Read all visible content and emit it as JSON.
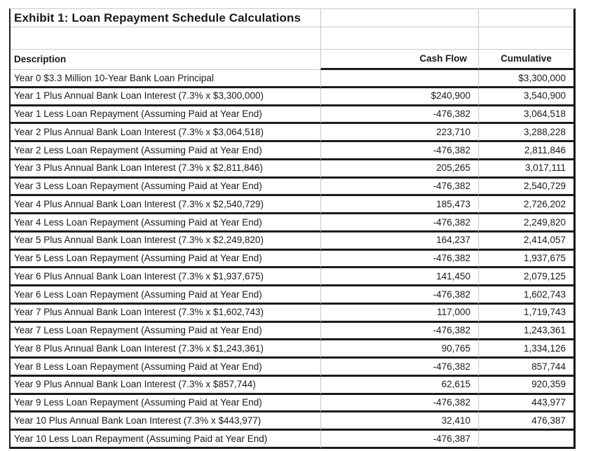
{
  "colors": {
    "background": "#ffffff",
    "text": "#1a1a1a",
    "thick_border": "#1b1b1b",
    "thin_border": "#c9c9c9"
  },
  "exhibit": {
    "title": "Exhibit 1: Loan Repayment Schedule Calculations",
    "headers": {
      "description": "Description",
      "cash_flow": "Cash Flow",
      "cumulative": "Cumulative"
    },
    "rows": [
      {
        "description": "Year 0 $3.3 Million 10-Year Bank Loan Principal",
        "cash_flow": "",
        "cumulative": "$3,300,000"
      },
      {
        "description": "Year 1 Plus Annual Bank Loan Interest (7.3% x $3,300,000)",
        "cash_flow": "$240,900",
        "cumulative": "3,540,900"
      },
      {
        "description": "Year 1 Less Loan Repayment (Assuming Paid at Year End)",
        "cash_flow": "-476,382",
        "cumulative": "3,064,518"
      },
      {
        "description": "Year 2 Plus Annual Bank Loan Interest (7.3% x $3,064,518)",
        "cash_flow": "223,710",
        "cumulative": "3,288,228"
      },
      {
        "description": "Year 2 Less Loan Repayment (Assuming Paid at Year End)",
        "cash_flow": "-476,382",
        "cumulative": "2,811,846"
      },
      {
        "description": "Year 3 Plus Annual Bank Loan Interest (7.3% x $2,811,846)",
        "cash_flow": "205,265",
        "cumulative": "3,017,111"
      },
      {
        "description": "Year 3 Less Loan Repayment (Assuming Paid at Year End)",
        "cash_flow": "-476,382",
        "cumulative": "2,540,729"
      },
      {
        "description": "Year 4 Plus Annual Bank Loan Interest (7.3% x $2,540,729)",
        "cash_flow": "185,473",
        "cumulative": "2,726,202"
      },
      {
        "description": "Year 4 Less Loan Repayment (Assuming Paid at Year End)",
        "cash_flow": "-476,382",
        "cumulative": "2,249,820"
      },
      {
        "description": "Year 5 Plus Annual Bank Loan Interest (7.3% x $2,249,820)",
        "cash_flow": "164,237",
        "cumulative": "2,414,057"
      },
      {
        "description": "Year 5 Less Loan Repayment (Assuming Paid at Year End)",
        "cash_flow": "-476,382",
        "cumulative": "1,937,675"
      },
      {
        "description": "Year 6 Plus Annual Bank Loan Interest (7.3% x $1,937,675)",
        "cash_flow": "141,450",
        "cumulative": "2,079,125"
      },
      {
        "description": "Year 6 Less Loan Repayment (Assuming Paid at Year End)",
        "cash_flow": "-476,382",
        "cumulative": "1,602,743"
      },
      {
        "description": "Year 7 Plus Annual Bank Loan Interest (7.3% x $1,602,743)",
        "cash_flow": "117,000",
        "cumulative": "1,719,743"
      },
      {
        "description": "Year 7 Less Loan Repayment (Assuming Paid at Year End)",
        "cash_flow": "-476,382",
        "cumulative": "1,243,361"
      },
      {
        "description": "Year 8 Plus Annual Bank Loan Interest (7.3% x $1,243,361)",
        "cash_flow": "90,765",
        "cumulative": "1,334,126"
      },
      {
        "description": "Year 8 Less Loan Repayment (Assuming Paid at Year End)",
        "cash_flow": "-476,382",
        "cumulative": "857,744"
      },
      {
        "description": "Year 9 Plus Annual Bank Loan Interest (7.3% x $857,744)",
        "cash_flow": "62,615",
        "cumulative": "920,359"
      },
      {
        "description": "Year 9 Less Loan Repayment (Assuming Paid at Year End)",
        "cash_flow": "-476,382",
        "cumulative": "443,977"
      },
      {
        "description": "Year 10 Plus Annual Bank Loan Interest (7.3% x $443,977)",
        "cash_flow": "32,410",
        "cumulative": "476,387"
      },
      {
        "description": "Year 10 Less Loan Repayment (Assuming Paid at Year End)",
        "cash_flow": "-476,387",
        "cumulative": ""
      }
    ]
  }
}
